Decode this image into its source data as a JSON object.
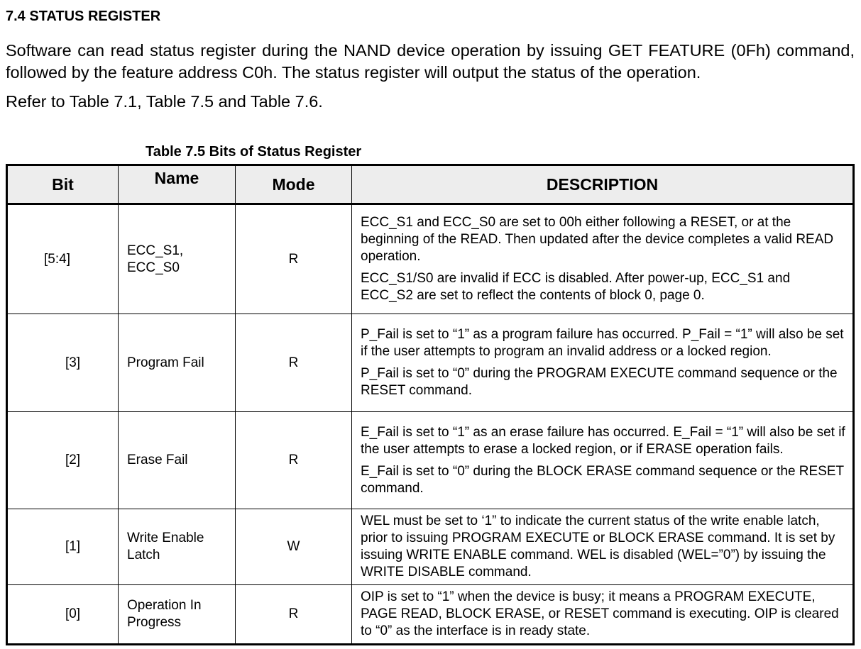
{
  "section_heading": "7.4 STATUS REGISTER",
  "paragraph1": "Software can read status register during the NAND device operation by issuing GET FEATURE (0Fh) command, followed by the feature address C0h. The status register will output the status of the operation.",
  "paragraph2": "Refer to Table 7.1, Table 7.5 and Table 7.6.",
  "table": {
    "caption": "Table 7.5 Bits of Status Register",
    "headers": [
      "Bit",
      "Name",
      "Mode",
      "DESCRIPTION"
    ],
    "rows": [
      {
        "bit": "[5:4]",
        "name": "ECC_S1, ECC_S0",
        "mode": "R",
        "desc": [
          "ECC_S1 and ECC_S0 are set to 00h either following a RESET, or at the beginning of the READ. Then updated after the device completes a valid READ operation.",
          "ECC_S1/S0 are invalid if ECC is disabled. After power-up, ECC_S1 and ECC_S2 are set to reflect the contents of block 0, page 0."
        ]
      },
      {
        "bit": "[3]",
        "name": "Program Fail",
        "mode": "R",
        "desc": [
          "P_Fail is set to “1” as a program failure has occurred. P_Fail = “1” will also be set if the user attempts to program an invalid address or a locked region.",
          "P_Fail is set to “0” during the PROGRAM EXECUTE command sequence or the RESET command."
        ]
      },
      {
        "bit": "[2]",
        "name": "Erase Fail",
        "mode": "R",
        "desc": [
          "E_Fail is set to “1” as an erase failure has occurred. E_Fail = “1” will also be set if the user attempts to erase a locked region, or if ERASE operation fails.",
          "E_Fail is set to “0” during the BLOCK ERASE command sequence or the RESET command."
        ]
      },
      {
        "bit": "[1]",
        "name": "Write Enable Latch",
        "mode": "W",
        "desc": [
          "WEL must be set to ‘1” to indicate the current status of the write enable latch, prior to issuing PROGRAM EXECUTE or BLOCK ERASE command. It is set by issuing WRITE ENABLE command. WEL is disabled (WEL=”0”) by issuing the WRITE DISABLE command."
        ]
      },
      {
        "bit": "[0]",
        "name": "Operation In Progress",
        "mode": "R",
        "desc": [
          "OIP is set to “1” when the device is busy; it means a PROGRAM EXECUTE, PAGE READ, BLOCK ERASE, or RESET command is executing. OIP is cleared to “0” as the interface is in ready state."
        ]
      }
    ]
  }
}
